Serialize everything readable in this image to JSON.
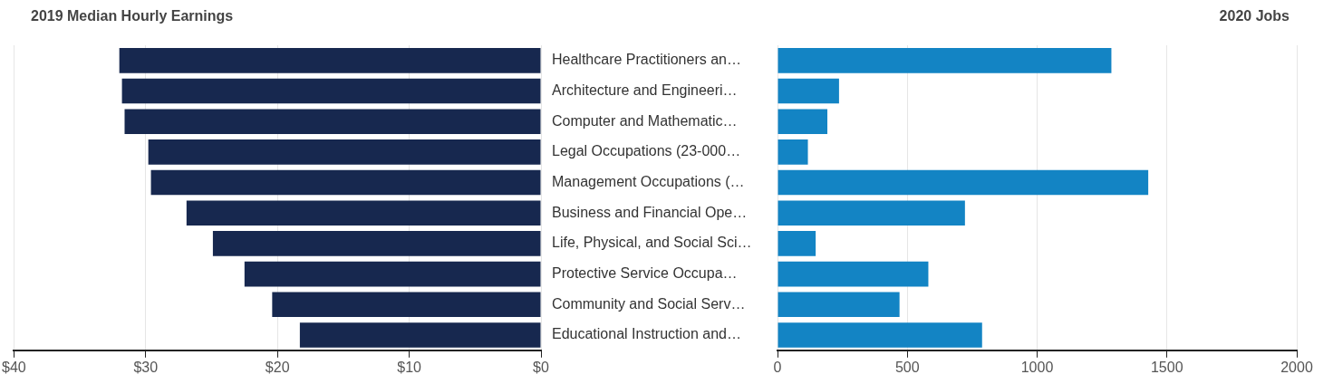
{
  "chart_data": [
    {
      "type": "bar",
      "orientation": "horizontal",
      "title": "2019 Median Hourly Earnings",
      "categories": [
        "Healthcare Practitioners an…",
        "Architecture and Engineeri…",
        "Computer and Mathematic…",
        "Legal Occupations (23-000…",
        "Management Occupations (…",
        "Business and Financial Ope…",
        "Life, Physical, and Social Sci…",
        "Protective Service Occupa…",
        "Community and Social Serv…",
        "Educational Instruction and…"
      ],
      "values": [
        32.0,
        31.8,
        31.6,
        29.8,
        29.6,
        26.9,
        24.9,
        22.5,
        20.4,
        18.3
      ],
      "color": "#17284f",
      "xlim": [
        40,
        0
      ],
      "xticks": [
        {
          "value": 40,
          "label": "$40"
        },
        {
          "value": 30,
          "label": "$30"
        },
        {
          "value": 20,
          "label": "$20"
        },
        {
          "value": 10,
          "label": "$10"
        },
        {
          "value": 0,
          "label": "$0"
        }
      ],
      "grid": "x",
      "legend": false
    },
    {
      "type": "bar",
      "orientation": "horizontal",
      "title": "2020 Jobs",
      "categories": [
        null,
        null,
        null,
        null,
        null,
        null,
        null,
        null,
        null,
        null
      ],
      "values": [
        1286,
        237,
        192,
        117,
        1428,
        722,
        147,
        581,
        470,
        788
      ],
      "color": "#1384c4",
      "xlim": [
        0,
        2000
      ],
      "xticks": [
        0,
        500,
        1000,
        1500,
        2000
      ],
      "grid": "x",
      "legend": false,
      "tick_labels": "x"
    }
  ]
}
